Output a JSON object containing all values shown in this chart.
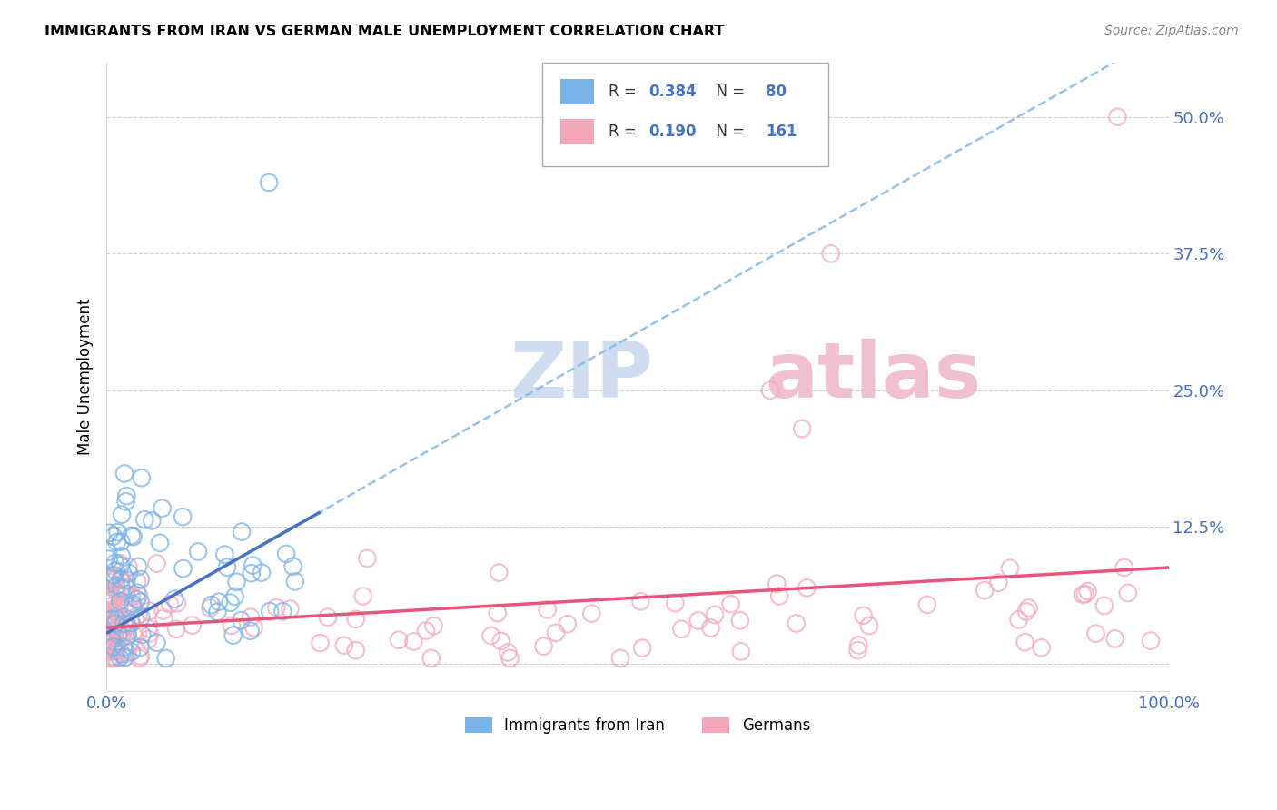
{
  "title": "IMMIGRANTS FROM IRAN VS GERMAN MALE UNEMPLOYMENT CORRELATION CHART",
  "source": "Source: ZipAtlas.com",
  "ylabel": "Male Unemployment",
  "yticks": [
    0.0,
    0.125,
    0.25,
    0.375,
    0.5
  ],
  "ytick_labels": [
    "",
    "12.5%",
    "25.0%",
    "37.5%",
    "50.0%"
  ],
  "xlim": [
    0.0,
    1.0
  ],
  "ylim": [
    -0.025,
    0.55
  ],
  "color_blue_scatter": "#7ab3e8",
  "color_pink_scatter": "#f4a7bb",
  "color_blue_text": "#4472C4",
  "color_pink_line": "#e8547a",
  "trendline_blue": "#4472C4",
  "trendline_dashed": "#7ab3e8",
  "background": "#ffffff",
  "grid_color": "#cccccc",
  "watermark_color": "#d0ddf0",
  "watermark_color2": "#f0c0d0"
}
